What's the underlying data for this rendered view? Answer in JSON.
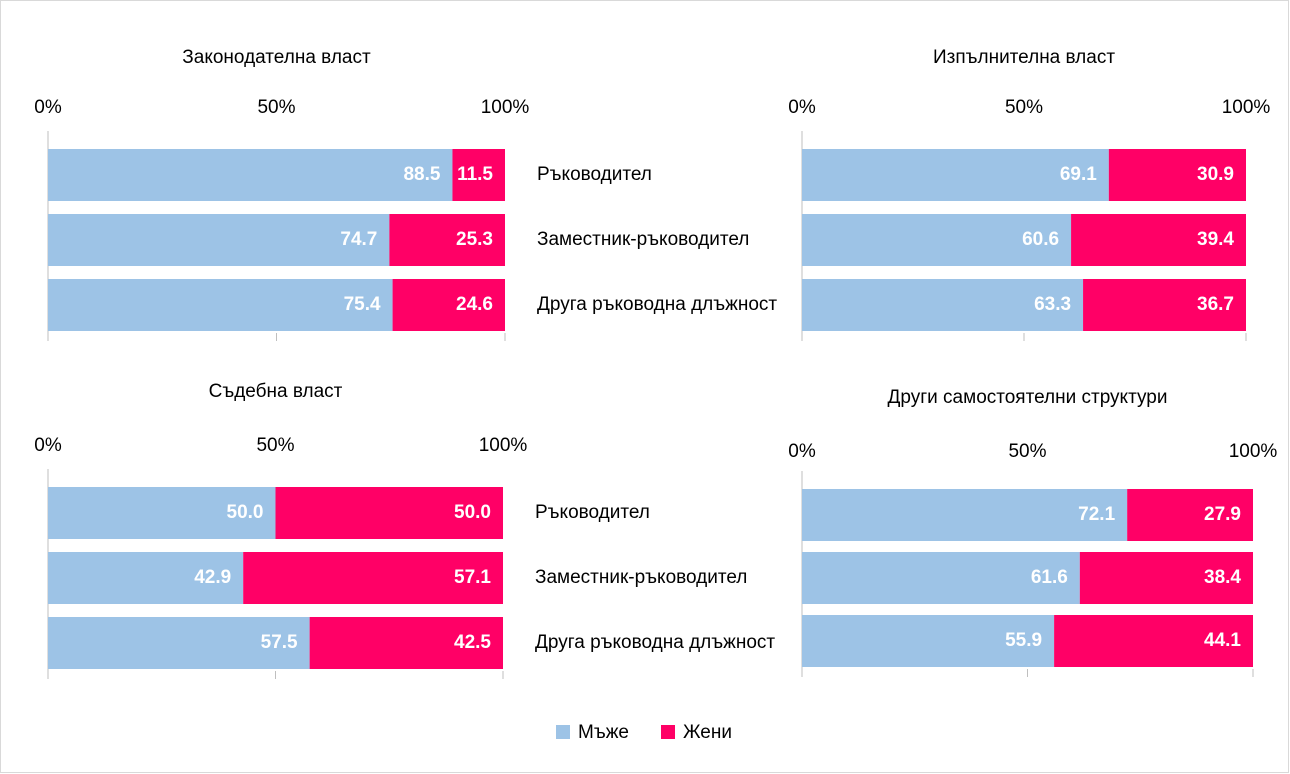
{
  "chart_data": [
    {
      "type": "stacked-bar",
      "title": "Законодателна власт",
      "categories": [
        "Ръководител",
        "Заместник-ръководител",
        "Друга ръководна длъжност"
      ],
      "series": [
        {
          "name": "Мъже",
          "color": "#9dc3e6",
          "values": [
            88.5,
            74.7,
            75.4
          ],
          "value_labels": [
            "88.5",
            "74.7",
            "75.4"
          ]
        },
        {
          "name": "Жени",
          "color": "#ff0066",
          "values": [
            11.5,
            25.3,
            24.6
          ],
          "value_labels": [
            "11.5",
            "25.3",
            "24.6"
          ]
        }
      ],
      "xlim": [
        0,
        100
      ],
      "xticks": [
        {
          "value": 0,
          "label": "0%"
        },
        {
          "value": 50,
          "label": "50%"
        },
        {
          "value": 100,
          "label": "100%"
        }
      ]
    },
    {
      "type": "stacked-bar",
      "title": "Изпълнителна власт",
      "categories": [
        null,
        null,
        null
      ],
      "series": [
        {
          "name": "Мъже",
          "color": "#9dc3e6",
          "values": [
            69.1,
            60.6,
            63.3
          ],
          "value_labels": [
            "69.1",
            "60.6",
            "63.3"
          ]
        },
        {
          "name": "Жени",
          "color": "#ff0066",
          "values": [
            30.9,
            39.4,
            36.7
          ],
          "value_labels": [
            "30.9",
            "39.4",
            "36.7"
          ]
        }
      ],
      "xlim": [
        0,
        100
      ],
      "xticks": [
        {
          "value": 0,
          "label": "0%"
        },
        {
          "value": 50,
          "label": "50%"
        },
        {
          "value": 100,
          "label": "100%"
        }
      ]
    },
    {
      "type": "stacked-bar",
      "title": "Съдебна власт",
      "categories": [
        "Ръководител",
        "Заместник-ръководител",
        "Друга ръководна длъжност"
      ],
      "series": [
        {
          "name": "Мъже",
          "color": "#9dc3e6",
          "values": [
            50,
            42.9,
            57.5
          ],
          "value_labels": [
            "50.0",
            "42.9",
            "57.5"
          ]
        },
        {
          "name": "Жени",
          "color": "#ff0066",
          "values": [
            50,
            57.1,
            42.5
          ],
          "value_labels": [
            "50.0",
            "57.1",
            "42.5"
          ]
        }
      ],
      "xlim": [
        0,
        100
      ],
      "xticks": [
        {
          "value": 0,
          "label": "0%"
        },
        {
          "value": 50,
          "label": "50%"
        },
        {
          "value": 100,
          "label": "100%"
        }
      ]
    },
    {
      "type": "stacked-bar",
      "title": "Други самостоятелни структури",
      "categories": [
        null,
        null,
        null
      ],
      "series": [
        {
          "name": "Мъже",
          "color": "#9dc3e6",
          "values": [
            72.1,
            61.6,
            55.9
          ],
          "value_labels": [
            "72.1",
            "61.6",
            "55.9"
          ]
        },
        {
          "name": "Жени",
          "color": "#ff0066",
          "values": [
            27.9,
            38.4,
            44.1
          ],
          "value_labels": [
            "27.9",
            "38.4",
            "44.1"
          ]
        }
      ],
      "xlim": [
        0,
        100
      ],
      "xticks": [
        {
          "value": 0,
          "label": "0%"
        },
        {
          "value": 50,
          "label": "50%"
        },
        {
          "value": 100,
          "label": "100%"
        }
      ]
    }
  ]
}
